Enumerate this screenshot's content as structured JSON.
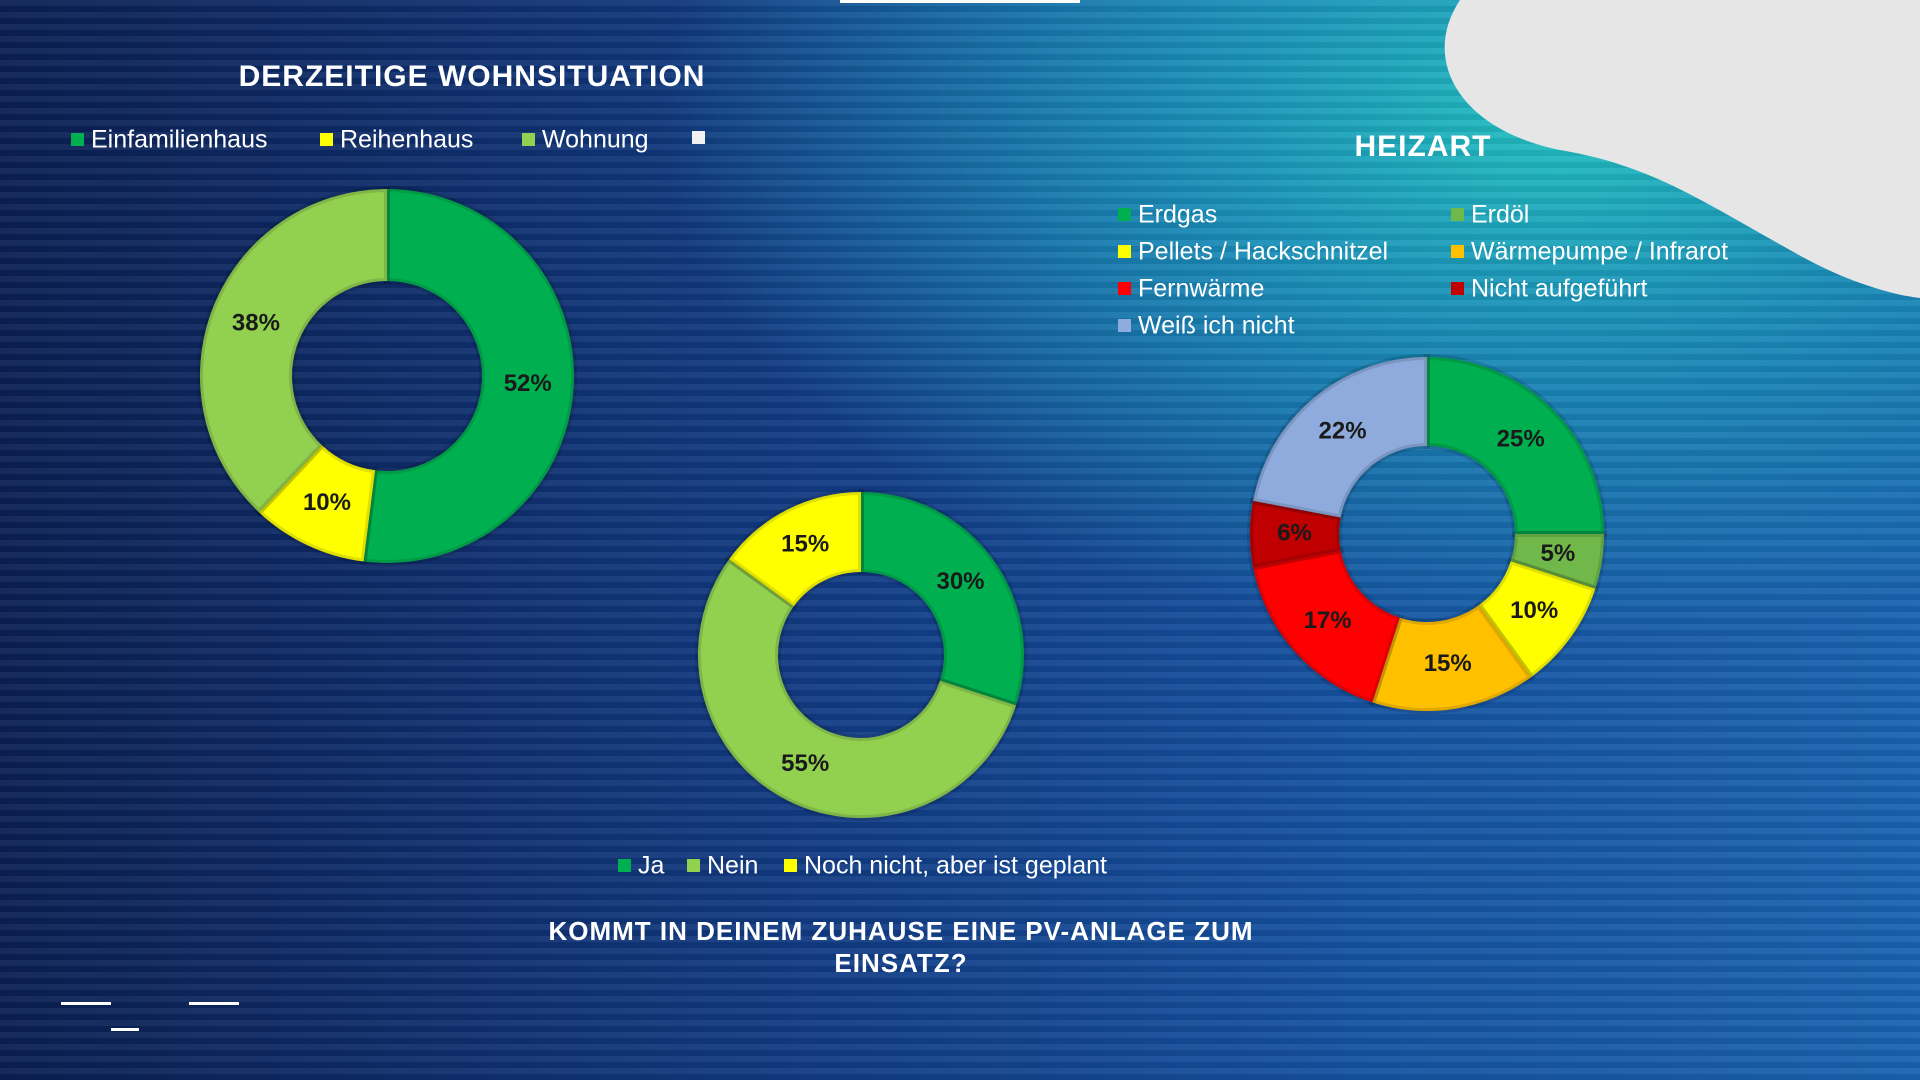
{
  "chart_data": [
    {
      "type": "pie",
      "title": "DERZEITIGE WOHNSITUATION",
      "categories": [
        "Einfamilienhaus",
        "Reihenhaus",
        "Wohnung"
      ],
      "values": [
        52,
        10,
        38
      ],
      "value_labels": [
        "52%",
        "10%",
        "38%"
      ],
      "colors": [
        "#00b050",
        "#ffff00",
        "#92d050"
      ]
    },
    {
      "type": "pie",
      "title": "KOMMT IN DEINEM ZUHAUSE EINE PV-ANLAGE ZUM EINSATZ?",
      "categories": [
        "Ja",
        "Nein",
        "Noch nicht, aber ist geplant"
      ],
      "values": [
        30,
        55,
        15
      ],
      "value_labels": [
        "30%",
        "55%",
        "15%"
      ],
      "colors": [
        "#00b050",
        "#92d050",
        "#ffff00"
      ]
    },
    {
      "type": "pie",
      "title": "HEIZART",
      "categories": [
        "Erdgas",
        "Erdöl",
        "Pellets / Hackschnitzel",
        "Wärmepumpe / Infrarot",
        "Fernwärme",
        "Nicht aufgeführt",
        "Weiß ich nicht"
      ],
      "values": [
        25,
        5,
        10,
        15,
        17,
        6,
        22
      ],
      "value_labels": [
        "25%",
        "5%",
        "10%",
        "15%",
        "17%",
        "6%",
        "22%"
      ],
      "colors": [
        "#00b050",
        "#70b84a",
        "#ffff00",
        "#ffc000",
        "#ff0000",
        "#c00000",
        "#8faadc"
      ]
    }
  ]
}
